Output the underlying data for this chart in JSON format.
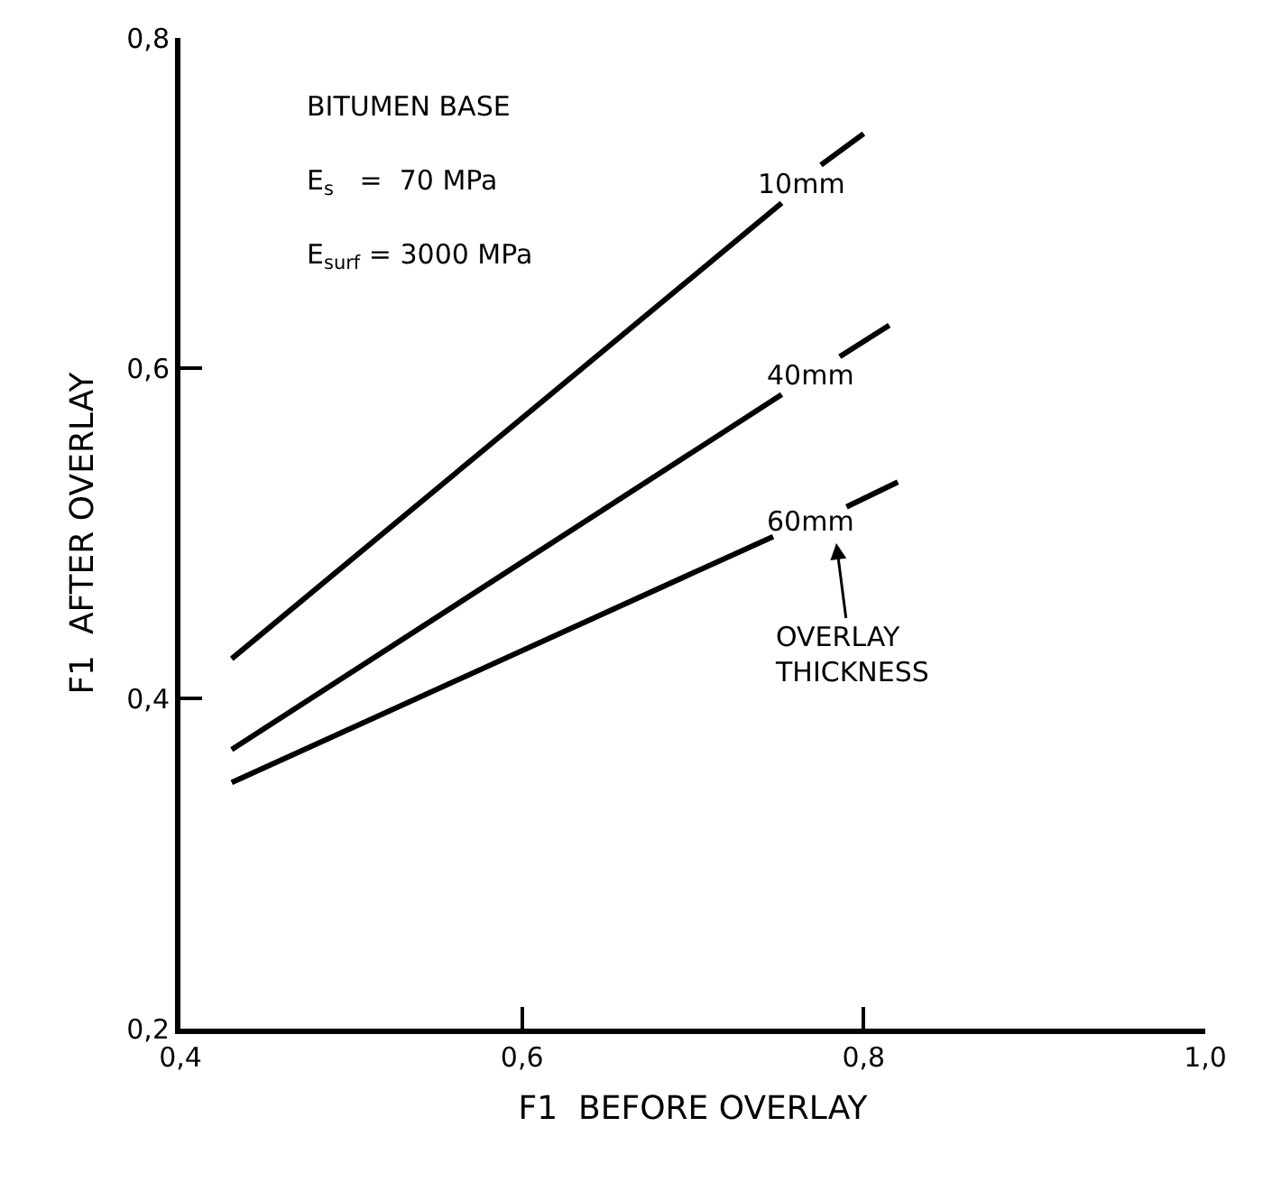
{
  "chart_data": {
    "type": "line",
    "xlabel": "F1  BEFORE OVERLAY",
    "ylabel": "F1  AFTER OVERLAY",
    "series": [
      {
        "name": "10mm",
        "color": "#000000",
        "x": [
          0.43,
          0.752,
          0.764,
          0.775,
          0.8
        ],
        "values": [
          0.424,
          0.7,
          null,
          0.723,
          0.742
        ]
      },
      {
        "name": "40mm",
        "color": "#000000",
        "x": [
          0.43,
          0.752,
          0.77,
          0.786,
          0.815
        ],
        "values": [
          0.369,
          0.584,
          null,
          0.607,
          0.626
        ]
      },
      {
        "name": "60mm",
        "color": "#000000",
        "x": [
          0.43,
          0.747,
          0.77,
          0.79,
          0.82
        ],
        "values": [
          0.349,
          0.498,
          null,
          0.516,
          0.531
        ]
      }
    ],
    "annotations": [
      "BITUMEN BASE",
      "E$_{s}$   =  70 MPa",
      "E$_{surf}$ = 3000 MPa",
      "OVERLAY\nTHICKNESS"
    ],
    "xlim": [
      0.4,
      1.0
    ],
    "ylim": [
      0.2,
      0.8
    ],
    "xticks": [
      {
        "value": 0.4,
        "label": "0,4"
      },
      {
        "value": 0.6,
        "label": "0,6"
      },
      {
        "value": 0.8,
        "label": "0,8"
      },
      {
        "value": 1.0,
        "label": "1,0"
      }
    ],
    "yticks": [
      {
        "value": 0.2,
        "label": "0,2"
      },
      {
        "value": 0.4,
        "label": "0,4"
      },
      {
        "value": 0.6,
        "label": "0,6"
      },
      {
        "value": 0.8,
        "label": "0,8"
      }
    ],
    "grid": false,
    "legend": false,
    "marker": "none",
    "line_style": "solid"
  }
}
